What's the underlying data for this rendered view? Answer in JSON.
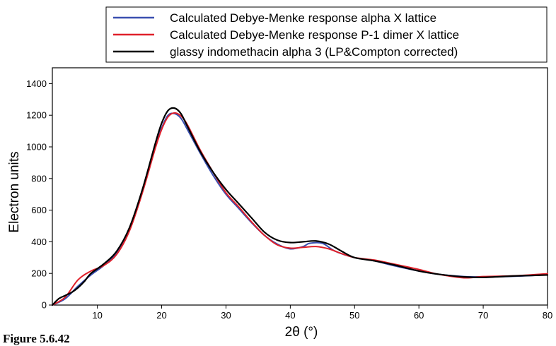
{
  "caption": "Figure 5.6.42",
  "chart_data": {
    "type": "line",
    "xlabel": "2θ (°)",
    "ylabel": "Electron units",
    "xlim": [
      3,
      80
    ],
    "ylim": [
      0,
      1500
    ],
    "x_ticks": [
      10,
      20,
      30,
      40,
      50,
      60,
      70,
      80
    ],
    "y_ticks": [
      0,
      200,
      400,
      600,
      800,
      1000,
      1200,
      1400
    ],
    "grid": false,
    "legend_position": "top",
    "series": [
      {
        "name": "Calculated Debye-Menke response alpha X lattice",
        "color": "#3a4fb0",
        "points": [
          [
            3,
            0
          ],
          [
            5,
            40
          ],
          [
            7,
            120
          ],
          [
            9,
            190
          ],
          [
            11,
            250
          ],
          [
            13,
            330
          ],
          [
            15,
            480
          ],
          [
            17,
            720
          ],
          [
            19,
            1000
          ],
          [
            20,
            1120
          ],
          [
            21,
            1200
          ],
          [
            22,
            1210
          ],
          [
            23,
            1180
          ],
          [
            24,
            1110
          ],
          [
            26,
            960
          ],
          [
            28,
            820
          ],
          [
            30,
            700
          ],
          [
            32,
            610
          ],
          [
            34,
            520
          ],
          [
            36,
            440
          ],
          [
            38,
            385
          ],
          [
            40,
            355
          ],
          [
            42,
            370
          ],
          [
            43,
            390
          ],
          [
            45,
            390
          ],
          [
            47,
            340
          ],
          [
            50,
            300
          ],
          [
            53,
            280
          ],
          [
            56,
            250
          ],
          [
            60,
            215
          ],
          [
            63,
            195
          ],
          [
            67,
            180
          ],
          [
            70,
            178
          ],
          [
            75,
            182
          ],
          [
            80,
            192
          ]
        ]
      },
      {
        "name": "Calculated Debye-Menke response P-1 dimer X lattice",
        "color": "#e0202a",
        "points": [
          [
            3,
            0
          ],
          [
            5,
            50
          ],
          [
            7,
            160
          ],
          [
            9,
            215
          ],
          [
            11,
            250
          ],
          [
            13,
            320
          ],
          [
            15,
            470
          ],
          [
            17,
            710
          ],
          [
            19,
            990
          ],
          [
            20,
            1110
          ],
          [
            21,
            1190
          ],
          [
            22,
            1215
          ],
          [
            23,
            1195
          ],
          [
            24,
            1140
          ],
          [
            26,
            980
          ],
          [
            28,
            840
          ],
          [
            30,
            710
          ],
          [
            32,
            620
          ],
          [
            34,
            525
          ],
          [
            36,
            440
          ],
          [
            38,
            380
          ],
          [
            40,
            360
          ],
          [
            42,
            365
          ],
          [
            44,
            370
          ],
          [
            46,
            355
          ],
          [
            48,
            325
          ],
          [
            50,
            300
          ],
          [
            53,
            285
          ],
          [
            56,
            260
          ],
          [
            60,
            225
          ],
          [
            63,
            195
          ],
          [
            67,
            172
          ],
          [
            70,
            180
          ],
          [
            75,
            185
          ],
          [
            80,
            198
          ]
        ]
      },
      {
        "name": "glassy indomethacin alpha 3 (LP&Compton corrected)",
        "color": "#000000",
        "points": [
          [
            3,
            0
          ],
          [
            4,
            40
          ],
          [
            5,
            60
          ],
          [
            6,
            80
          ],
          [
            7,
            110
          ],
          [
            8,
            150
          ],
          [
            9,
            200
          ],
          [
            11,
            260
          ],
          [
            13,
            340
          ],
          [
            15,
            490
          ],
          [
            17,
            730
          ],
          [
            19,
            1020
          ],
          [
            20,
            1150
          ],
          [
            21,
            1230
          ],
          [
            22,
            1245
          ],
          [
            23,
            1210
          ],
          [
            24,
            1130
          ],
          [
            26,
            970
          ],
          [
            28,
            840
          ],
          [
            30,
            730
          ],
          [
            32,
            640
          ],
          [
            34,
            550
          ],
          [
            36,
            460
          ],
          [
            38,
            410
          ],
          [
            40,
            395
          ],
          [
            42,
            400
          ],
          [
            44,
            405
          ],
          [
            46,
            385
          ],
          [
            48,
            340
          ],
          [
            50,
            300
          ],
          [
            53,
            280
          ],
          [
            56,
            255
          ],
          [
            60,
            215
          ],
          [
            63,
            195
          ],
          [
            67,
            178
          ],
          [
            70,
            175
          ],
          [
            75,
            184
          ],
          [
            80,
            190
          ]
        ]
      }
    ]
  }
}
